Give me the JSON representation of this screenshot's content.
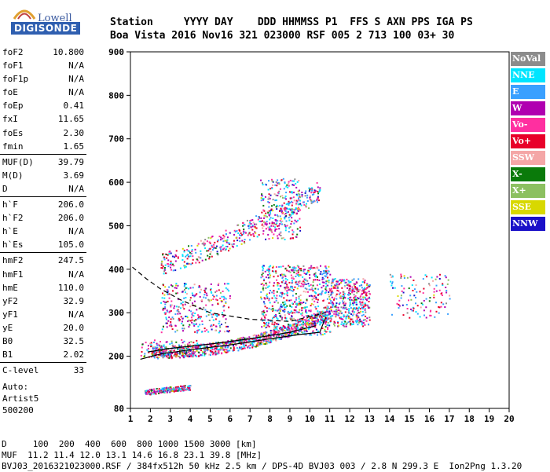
{
  "logo": {
    "maker": "Lowell",
    "brand": "DIGISONDE"
  },
  "header": {
    "line1": "Station     YYYY DAY    DDD HHMMSS P1  FFS S AXN PPS IGA PS",
    "line2": "Boa Vista 2016 Nov16 321 023000 RSF 005 2 713 100 03+ 30"
  },
  "params": [
    [
      {
        "name": "foF2",
        "value": "10.800"
      },
      {
        "name": "foF1",
        "value": "N/A"
      },
      {
        "name": "foF1p",
        "value": "N/A"
      },
      {
        "name": "foE",
        "value": "N/A"
      },
      {
        "name": "foEp",
        "value": "0.41"
      },
      {
        "name": "fxI",
        "value": "11.65"
      },
      {
        "name": "foEs",
        "value": "2.30"
      },
      {
        "name": "fmin",
        "value": "1.65"
      }
    ],
    [
      {
        "name": "MUF(D)",
        "value": "39.79"
      },
      {
        "name": "M(D)",
        "value": "3.69"
      },
      {
        "name": "D",
        "value": "N/A"
      }
    ],
    [
      {
        "name": "h`F",
        "value": "206.0"
      },
      {
        "name": "h`F2",
        "value": "206.0"
      },
      {
        "name": "h`E",
        "value": "N/A"
      },
      {
        "name": "h`Es",
        "value": "105.0"
      }
    ],
    [
      {
        "name": "hmF2",
        "value": "247.5"
      },
      {
        "name": "hmF1",
        "value": "N/A"
      },
      {
        "name": "hmE",
        "value": "110.0"
      },
      {
        "name": "yF2",
        "value": "32.9"
      },
      {
        "name": "yF1",
        "value": "N/A"
      },
      {
        "name": "yE",
        "value": "20.0"
      },
      {
        "name": "B0",
        "value": "32.5"
      },
      {
        "name": "B1",
        "value": "2.02"
      }
    ],
    [
      {
        "name": "C-level",
        "value": "33"
      }
    ]
  ],
  "auto": {
    "line1": "Auto:",
    "line2": "Artist5",
    "line3": "500200"
  },
  "legend": [
    {
      "label": "NoVal",
      "color": "#8c8c8c"
    },
    {
      "label": "NNE",
      "color": "#00e5ff"
    },
    {
      "label": "E",
      "color": "#3aa0ff"
    },
    {
      "label": "W",
      "color": "#b000b0"
    },
    {
      "label": "Vo-",
      "color": "#ff2fa0"
    },
    {
      "label": "Vo+",
      "color": "#e8002a"
    },
    {
      "label": "SSW",
      "color": "#f4a6a6"
    },
    {
      "label": "X-",
      "color": "#0a7a0a"
    },
    {
      "label": "X+",
      "color": "#8cc060"
    },
    {
      "label": "SSE",
      "color": "#d8d800"
    },
    {
      "label": "NNW",
      "color": "#1a10c8"
    }
  ],
  "footer": {
    "line1": "D     100  200  400  600  800 1000 1500 3000 [km]",
    "line2": "MUF  11.2 11.4 12.0 13.1 14.6 16.8 23.1 39.8 [MHz]",
    "line3": "BVJ03_2016321023000.RSF / 384fx512h 50 kHz 2.5 km / DPS-4D BVJ03 003 / 2.8 N 299.3 E  Ion2Png 1.3.20"
  },
  "chart_data": {
    "type": "scatter",
    "xlim": [
      1,
      20
    ],
    "ylim": [
      80,
      900
    ],
    "xticks": [
      1,
      2,
      3,
      4,
      5,
      6,
      7,
      8,
      9,
      10,
      11,
      12,
      13,
      14,
      15,
      16,
      17,
      18,
      19,
      20
    ],
    "yticks": [
      80,
      200,
      300,
      400,
      500,
      600,
      700,
      800,
      900
    ],
    "clusters": [
      {
        "name": "F-trace",
        "n": 900,
        "x": [
          2.0,
          11.0
        ],
        "y0": 210,
        "y1": 300,
        "curve": 2.2,
        "spread": 14
      },
      {
        "name": "F-columns",
        "n": 700,
        "x": [
          7.5,
          11.0
        ],
        "y0": 250,
        "y1": 410,
        "curve": 1,
        "spread": 0
      },
      {
        "name": "F-diffuse",
        "n": 300,
        "x": [
          2.5,
          6.0
        ],
        "y0": 255,
        "y1": 370,
        "curve": 1,
        "spread": 0
      },
      {
        "name": "2F-trace",
        "n": 450,
        "x": [
          2.5,
          10.5
        ],
        "y0": 415,
        "y1": 580,
        "curve": 1.3,
        "spread": 25
      },
      {
        "name": "2F-columns",
        "n": 200,
        "x": [
          7.5,
          9.5
        ],
        "y0": 470,
        "y1": 610,
        "curve": 1,
        "spread": 0
      },
      {
        "name": "spread-F",
        "n": 420,
        "x": [
          11.0,
          13.0
        ],
        "y0": 270,
        "y1": 380,
        "curve": 1,
        "spread": 0
      },
      {
        "name": "spread-F-outer",
        "n": 120,
        "x": [
          14.0,
          17.0
        ],
        "y0": 290,
        "y1": 390,
        "curve": 1,
        "spread": 0
      },
      {
        "name": "Es",
        "n": 200,
        "x": [
          1.7,
          4.0
        ],
        "y0": 118,
        "y1": 130,
        "curve": 1,
        "spread": 6
      },
      {
        "name": "low-diffuse",
        "n": 100,
        "x": [
          1.5,
          4.5
        ],
        "y0": 200,
        "y1": 240,
        "curve": 1,
        "spread": 0
      }
    ],
    "lines": [
      {
        "name": "virtual-height-fit",
        "style": "solid",
        "x": [
          1.5,
          2.5,
          4,
          6,
          8,
          9.5,
          10.5,
          10.8
        ],
        "y": [
          193,
          205,
          215,
          226,
          240,
          250,
          255,
          290
        ]
      },
      {
        "name": "virtual-height-fit-o",
        "style": "solid",
        "x": [
          1.9,
          3,
          5,
          7,
          9,
          10.3
        ],
        "y": [
          210,
          218,
          228,
          240,
          255,
          270
        ]
      },
      {
        "name": "profile",
        "style": "dashed",
        "x": [
          1.1,
          1.8,
          2.5,
          3.5,
          5,
          7,
          9,
          10.8
        ],
        "y": [
          405,
          378,
          355,
          330,
          300,
          285,
          280,
          300
        ]
      }
    ]
  }
}
